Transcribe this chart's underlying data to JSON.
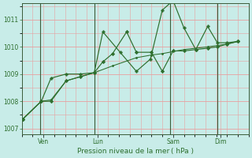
{
  "bg_color": "#c8ece8",
  "grid_color": "#e8a0a0",
  "line_color": "#2d6e2d",
  "marker_color": "#2d6e2d",
  "xlabel": "Pression niveau de la mer ( hPa )",
  "ylim": [
    1006.8,
    1011.6
  ],
  "yticks": [
    1007,
    1008,
    1009,
    1010,
    1011
  ],
  "xlim": [
    0,
    10.5
  ],
  "xtick_labels": [
    "Ven",
    "Lun",
    "Sam",
    "Dim"
  ],
  "xtick_positions": [
    1.0,
    3.5,
    7.0,
    9.2
  ],
  "vline_positions": [
    0.85,
    3.35,
    6.85,
    9.05
  ],
  "series_zigzag_x": [
    0.05,
    0.9,
    1.35,
    2.05,
    2.7,
    3.35,
    3.75,
    4.2,
    4.85,
    5.3,
    6.0,
    6.5,
    7.0,
    7.5,
    8.05,
    8.6,
    9.05,
    9.5,
    10.0
  ],
  "series_zigzag_y": [
    1007.35,
    1008.0,
    1008.0,
    1008.75,
    1008.9,
    1009.05,
    1009.45,
    1009.75,
    1010.55,
    1009.8,
    1009.8,
    1009.1,
    1009.85,
    1009.85,
    1009.9,
    1009.95,
    1010.0,
    1010.1,
    1010.2
  ],
  "series_spike_x": [
    0.05,
    0.9,
    1.35,
    2.05,
    2.7,
    3.35,
    3.75,
    4.55,
    5.3,
    5.95,
    6.5,
    7.0,
    7.5,
    8.05,
    8.6,
    9.05,
    9.5,
    10.0
  ],
  "series_spike_y": [
    1007.35,
    1008.0,
    1008.85,
    1009.0,
    1009.0,
    1009.05,
    1010.55,
    1009.8,
    1009.1,
    1009.55,
    1011.35,
    1011.7,
    1010.7,
    1009.9,
    1010.75,
    1010.15,
    1010.15,
    1010.2
  ],
  "series_trend_x": [
    0.05,
    0.9,
    1.35,
    2.05,
    2.7,
    3.35,
    4.2,
    5.3,
    6.0,
    6.5,
    7.5,
    8.6,
    9.5,
    10.0
  ],
  "series_trend_y": [
    1007.35,
    1008.0,
    1008.05,
    1008.75,
    1008.9,
    1009.05,
    1009.3,
    1009.6,
    1009.7,
    1009.75,
    1009.9,
    1010.0,
    1010.1,
    1010.2
  ],
  "figsize": [
    3.2,
    2.0
  ],
  "dpi": 100
}
